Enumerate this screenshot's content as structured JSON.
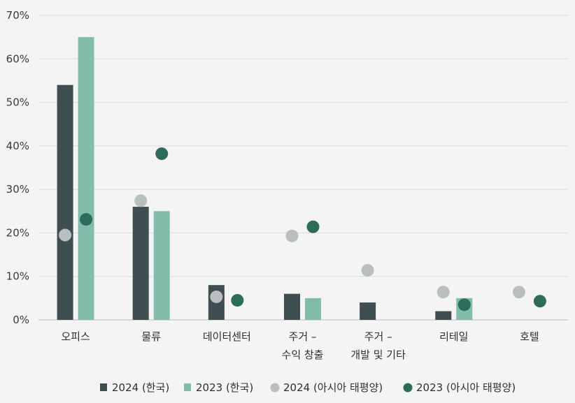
{
  "chart_data": {
    "type": "bar",
    "title": "",
    "xlabel": "",
    "ylabel": "",
    "ylim": [
      0,
      70
    ],
    "ytick_values": [
      0,
      10,
      20,
      30,
      40,
      50,
      60,
      70
    ],
    "ytick_labels": [
      "0%",
      "10%",
      "20%",
      "30%",
      "40%",
      "50%",
      "60%",
      "70%"
    ],
    "grid": true,
    "legend_position": "bottom",
    "categories": [
      [
        "오피스"
      ],
      [
        "물류"
      ],
      [
        "데이터센터"
      ],
      [
        "주거 –",
        "수익 창출"
      ],
      [
        "주거 –",
        "개발 및 기타"
      ],
      [
        "리테일"
      ],
      [
        "호텔"
      ]
    ],
    "series": [
      {
        "name": "2024 (한국)",
        "mark": "bar",
        "color": "#3f4e50",
        "values": [
          54,
          26,
          8,
          6,
          4,
          2,
          null
        ]
      },
      {
        "name": "2023 (한국)",
        "mark": "bar",
        "color": "#82bcaa",
        "values": [
          65,
          25,
          null,
          5,
          null,
          5,
          null
        ]
      },
      {
        "name": "2024 (아시아 태평양)",
        "mark": "dot",
        "color": "#b9bfbf",
        "values": [
          19.5,
          27.4,
          5.3,
          19.3,
          11.4,
          6.4,
          6.4
        ]
      },
      {
        "name": "2023 (아시아 태평양)",
        "mark": "dot",
        "color": "#2e6b5b",
        "values": [
          23.1,
          38.2,
          4.5,
          21.4,
          null,
          3.5,
          4.3
        ]
      }
    ],
    "gridline_color": "#dcdcdc",
    "axis_color": "#bdbdbd"
  }
}
